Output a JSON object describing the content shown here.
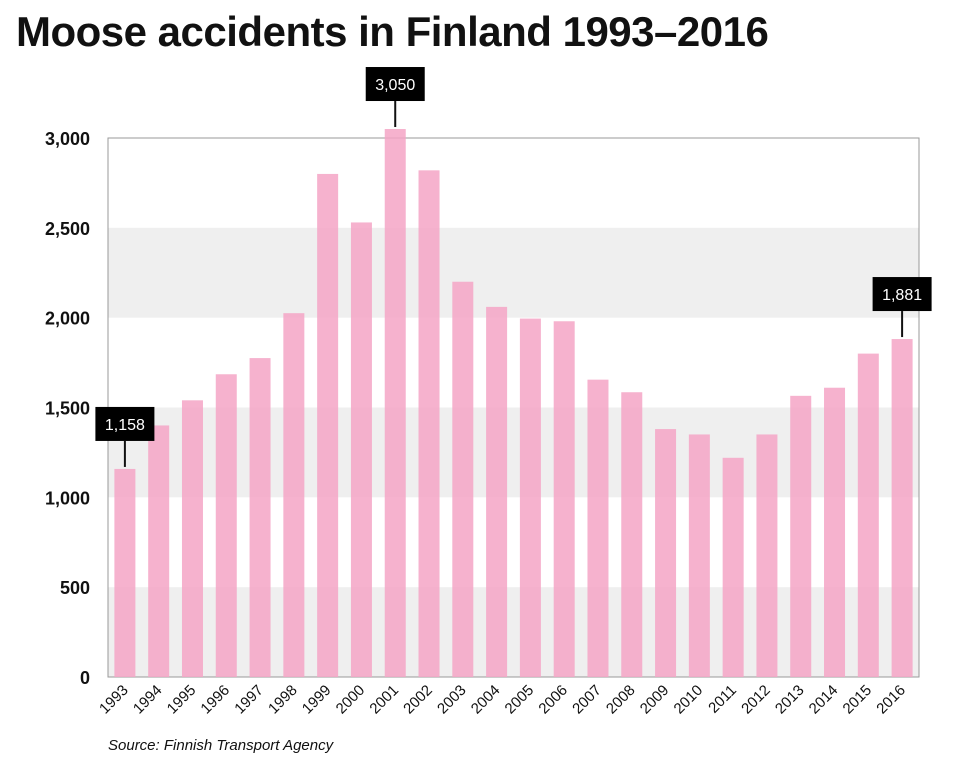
{
  "title": "Moose accidents in Finland 1993–2016",
  "source": "Source: Finnish Transport Agency",
  "chart_data": {
    "type": "bar",
    "title": "Moose accidents in Finland 1993–2016",
    "xlabel": "",
    "ylabel": "",
    "ylim": [
      0,
      3000
    ],
    "yticks": [
      0,
      500,
      1000,
      1500,
      2000,
      2500,
      3000
    ],
    "ytick_labels": [
      "0",
      "500",
      "1,000",
      "1,500",
      "2,000",
      "2,500",
      "3,000"
    ],
    "categories": [
      "1993",
      "1994",
      "1995",
      "1996",
      "1997",
      "1998",
      "1999",
      "2000",
      "2001",
      "2002",
      "2003",
      "2004",
      "2005",
      "2006",
      "2007",
      "2008",
      "2009",
      "2010",
      "2011",
      "2012",
      "2013",
      "2014",
      "2015",
      "2016"
    ],
    "values": [
      1158,
      1400,
      1540,
      1685,
      1775,
      2025,
      2800,
      2530,
      3050,
      2820,
      2200,
      2060,
      1995,
      1980,
      1655,
      1585,
      1380,
      1350,
      1220,
      1350,
      1565,
      1610,
      1800,
      1881
    ],
    "annotations": [
      {
        "category": "1993",
        "label": "1,158"
      },
      {
        "category": "2001",
        "label": "3,050"
      },
      {
        "category": "2016",
        "label": "1,881"
      }
    ],
    "bar_color": "#f4a4c6",
    "band_color": "#efefef",
    "grid": false,
    "legend": "none"
  }
}
